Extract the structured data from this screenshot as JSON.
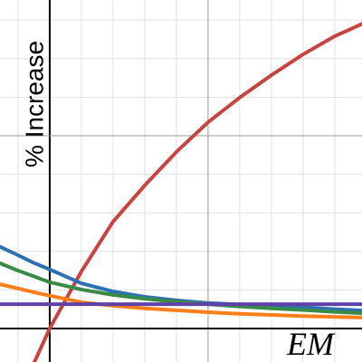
{
  "chart_data": {
    "type": "line",
    "x_label": "EM",
    "y_label": "% Increase",
    "xlim": [
      -1.57,
      9.86
    ],
    "ylim": [
      -0.87,
      8.52
    ],
    "xticks": [
      0,
      5
    ],
    "yticks": [
      0,
      5
    ],
    "x_minor_ticks": [
      -1,
      1,
      2,
      3,
      4,
      6,
      7,
      8,
      9
    ],
    "y_minor_ticks": [
      1,
      2,
      3,
      4,
      6,
      7,
      8
    ],
    "grid": true,
    "x": [
      -1.6,
      -1,
      -0.5,
      0,
      1,
      2,
      3,
      4,
      5,
      6,
      7,
      8,
      9,
      10
    ],
    "series": [
      {
        "color": "#c74440",
        "values": [
          null,
          null,
          -0.9,
          0,
          1.48,
          2.77,
          3.71,
          4.58,
          5.35,
          5.99,
          6.57,
          7.11,
          7.58,
          7.95
        ]
      },
      {
        "color": "#2d70b3",
        "values": [
          2.13,
          1.9,
          1.7,
          1.53,
          1.17,
          0.96,
          0.82,
          0.73,
          0.66,
          0.62,
          0.59,
          0.55,
          0.5,
          0.46
        ]
      },
      {
        "color": "#388c46",
        "values": [
          1.7,
          1.5,
          1.35,
          1.2,
          1.01,
          0.87,
          0.77,
          0.69,
          0.63,
          0.57,
          0.52,
          0.48,
          0.43,
          0.39
        ]
      },
      {
        "color": "#fa7e19",
        "values": [
          1.15,
          1.04,
          0.94,
          0.85,
          0.68,
          0.59,
          0.52,
          0.47,
          0.42,
          0.38,
          0.35,
          0.32,
          0.3,
          0.28
        ]
      },
      {
        "color": "#6042a6",
        "values": [
          0.63,
          0.63,
          0.63,
          0.63,
          0.63,
          0.63,
          0.63,
          0.63,
          0.63,
          0.63,
          0.63,
          0.63,
          0.63,
          0.63
        ]
      }
    ]
  }
}
